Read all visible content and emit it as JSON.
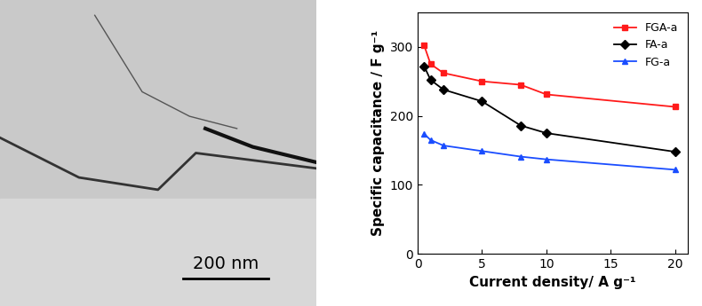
{
  "micrograph": {
    "scale_bar_label": "200 nm"
  },
  "chart_data": {
    "type": "line",
    "x_label": "Current density/ A g⁻¹",
    "y_label": "Specific capacitance / F g⁻¹",
    "x": [
      0.5,
      1,
      2,
      5,
      8,
      10,
      20
    ],
    "series": [
      {
        "name": "FGA-a",
        "color": "#ff1a1a",
        "marker": "square",
        "line_style": "solid",
        "values": [
          302,
          275,
          262,
          250,
          245,
          231,
          213
        ]
      },
      {
        "name": "FA-a",
        "color": "#000000",
        "marker": "diamond",
        "line_style": "solid",
        "values": [
          272,
          252,
          238,
          221,
          186,
          175,
          148
        ]
      },
      {
        "name": "FG-a",
        "color": "#1a4dff",
        "marker": "triangle",
        "line_style": "solid",
        "values": [
          174,
          165,
          157,
          149,
          141,
          137,
          122
        ]
      }
    ],
    "xlim": [
      0,
      21
    ],
    "xticks": [
      0,
      5,
      10,
      15,
      20
    ],
    "ylim": [
      0,
      350
    ],
    "yticks": [
      0,
      100,
      200,
      300
    ],
    "legend": "upper right",
    "grid": false
  }
}
